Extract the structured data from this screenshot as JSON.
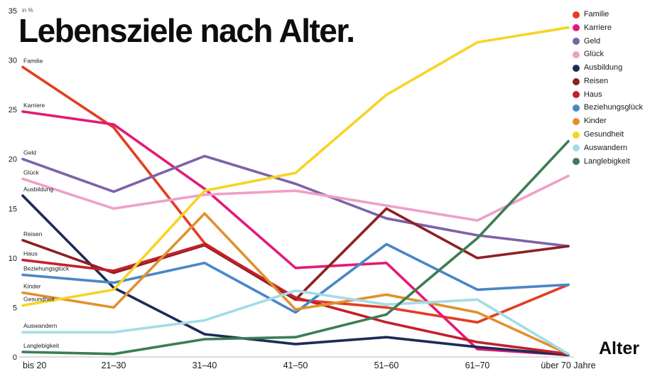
{
  "title": "Lebensziele nach Alter.",
  "axes": {
    "y_unit_label": "in %",
    "x_axis_title": "Alter"
  },
  "chart_data": {
    "type": "line",
    "title": "Lebensziele nach Alter.",
    "xlabel": "Alter",
    "ylabel": "in %",
    "categories": [
      "bis 20",
      "21–30",
      "31–40",
      "41–50",
      "51–60",
      "61–70",
      "über 70 Jahre"
    ],
    "ylim": [
      0,
      35
    ],
    "yticks": [
      0,
      5,
      10,
      15,
      20,
      25,
      30,
      35
    ],
    "grid": false,
    "legend_position": "top-right",
    "series": [
      {
        "name": "Familie",
        "color": "#e23d23",
        "values": [
          29.3,
          23.2,
          11.5,
          5.8,
          5.0,
          3.5,
          7.3
        ]
      },
      {
        "name": "Karriere",
        "color": "#e31a78",
        "values": [
          24.8,
          23.5,
          17.0,
          9.0,
          9.5,
          0.8,
          0.2
        ]
      },
      {
        "name": "Geld",
        "color": "#7d62a8",
        "values": [
          20.0,
          16.7,
          20.3,
          17.5,
          14.0,
          12.3,
          11.2
        ]
      },
      {
        "name": "Glück",
        "color": "#efa0c8",
        "values": [
          18.0,
          15.0,
          16.4,
          16.8,
          15.3,
          13.8,
          18.3
        ]
      },
      {
        "name": "Ausbildung",
        "color": "#1e2b58",
        "values": [
          16.3,
          7.0,
          2.3,
          1.3,
          2.0,
          1.0,
          0.2
        ]
      },
      {
        "name": "Reisen",
        "color": "#8e1f24",
        "values": [
          11.8,
          8.5,
          11.3,
          5.8,
          15.0,
          10.0,
          11.2
        ]
      },
      {
        "name": "Haus",
        "color": "#c2202b",
        "values": [
          9.8,
          8.7,
          11.4,
          6.0,
          3.5,
          1.5,
          0.3
        ]
      },
      {
        "name": "Beziehungsglück",
        "color": "#4a86c9",
        "values": [
          8.3,
          7.5,
          9.5,
          4.5,
          11.4,
          6.8,
          7.3
        ]
      },
      {
        "name": "Kinder",
        "color": "#e0912f",
        "values": [
          6.5,
          5.0,
          14.5,
          4.8,
          6.3,
          4.5,
          0.3
        ]
      },
      {
        "name": "Gesundheit",
        "color": "#f7d426",
        "values": [
          5.2,
          6.8,
          16.8,
          18.6,
          26.5,
          31.8,
          33.3
        ]
      },
      {
        "name": "Auswandern",
        "color": "#a3dce8",
        "values": [
          2.5,
          2.5,
          3.7,
          6.7,
          5.3,
          5.8,
          0.3
        ]
      },
      {
        "name": "Langlebigkeit",
        "color": "#3d7d54",
        "values": [
          0.5,
          0.3,
          1.8,
          2.0,
          4.3,
          12.0,
          21.8
        ]
      }
    ]
  }
}
